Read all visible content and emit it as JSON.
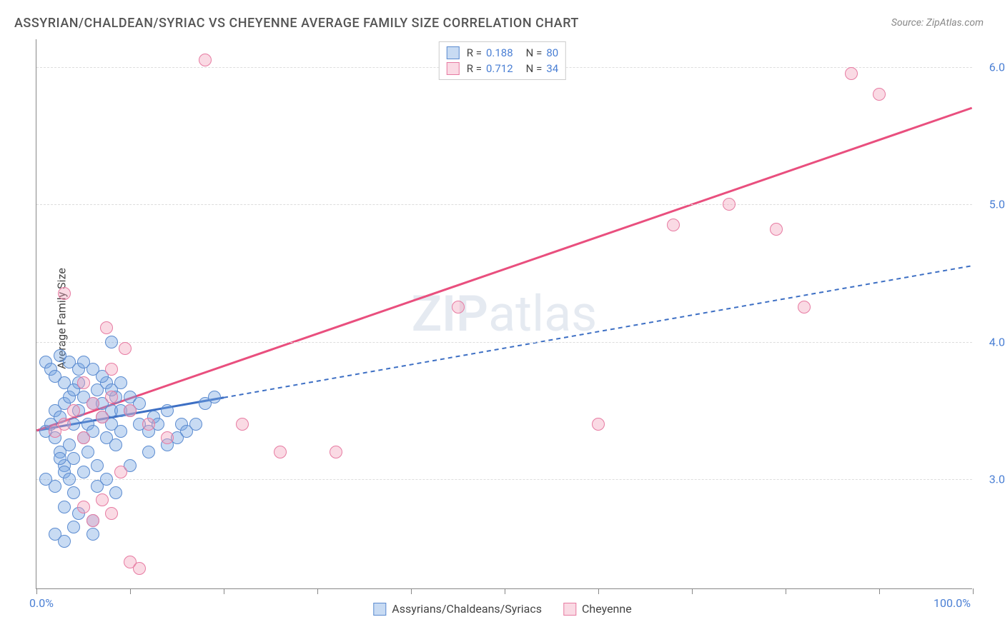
{
  "title": "ASSYRIAN/CHALDEAN/SYRIAC VS CHEYENNE AVERAGE FAMILY SIZE CORRELATION CHART",
  "source": "Source: ZipAtlas.com",
  "watermark_a": "ZIP",
  "watermark_b": "atlas",
  "y_axis_label": "Average Family Size",
  "chart": {
    "type": "scatter",
    "xlim": [
      0,
      100
    ],
    "ylim": [
      2.2,
      6.2
    ],
    "x_ticks": [
      0,
      10,
      20,
      30,
      40,
      50,
      60,
      70,
      80,
      90,
      100
    ],
    "x_tick_labels": {
      "0": "0.0%",
      "100": "100.0%"
    },
    "y_ticks": [
      3.0,
      4.0,
      5.0,
      6.0
    ],
    "y_tick_labels": {
      "3.0": "3.00",
      "4.0": "4.00",
      "5.0": "5.00",
      "6.0": "6.00"
    },
    "grid_color": "#dddddd",
    "axis_color": "#888888",
    "background_color": "#ffffff",
    "label_color": "#4a7fd4",
    "series": [
      {
        "name": "Assyrians/Chaldeans/Syriacs",
        "color_fill": "rgba(118,164,224,0.4)",
        "color_stroke": "#5b8bd0",
        "trend_color": "#3d6fc4",
        "trend_dash": "6 5",
        "trend_solid_frac": 0.2,
        "R": "0.188",
        "N": "80",
        "trend": {
          "x1": 0,
          "y1": 3.35,
          "x2": 100,
          "y2": 4.55
        },
        "points": [
          [
            1,
            3.35
          ],
          [
            1.5,
            3.4
          ],
          [
            2,
            3.3
          ],
          [
            2,
            3.5
          ],
          [
            2.5,
            3.2
          ],
          [
            2.5,
            3.45
          ],
          [
            3,
            3.1
          ],
          [
            3,
            3.55
          ],
          [
            3.5,
            3.6
          ],
          [
            3.5,
            3.25
          ],
          [
            4,
            3.4
          ],
          [
            4,
            3.15
          ],
          [
            4.5,
            3.5
          ],
          [
            4.5,
            3.7
          ],
          [
            5,
            3.3
          ],
          [
            5,
            3.6
          ],
          [
            5.5,
            3.4
          ],
          [
            5.5,
            3.2
          ],
          [
            6,
            3.55
          ],
          [
            6,
            3.35
          ],
          [
            6.5,
            3.65
          ],
          [
            6.5,
            3.1
          ],
          [
            7,
            3.45
          ],
          [
            7,
            3.55
          ],
          [
            7.5,
            3.3
          ],
          [
            7.5,
            3.7
          ],
          [
            8,
            3.4
          ],
          [
            8,
            3.5
          ],
          [
            8.5,
            3.6
          ],
          [
            8.5,
            3.25
          ],
          [
            9,
            3.35
          ],
          [
            9,
            3.5
          ],
          [
            1,
            3.85
          ],
          [
            1.5,
            3.8
          ],
          [
            2,
            3.75
          ],
          [
            2.5,
            3.9
          ],
          [
            3,
            3.7
          ],
          [
            3.5,
            3.85
          ],
          [
            4,
            3.65
          ],
          [
            4.5,
            3.8
          ],
          [
            1,
            3.0
          ],
          [
            2,
            2.95
          ],
          [
            3,
            3.05
          ],
          [
            4,
            2.9
          ],
          [
            2,
            2.6
          ],
          [
            3,
            2.55
          ],
          [
            4,
            2.65
          ],
          [
            6,
            2.6
          ],
          [
            8,
            4.0
          ],
          [
            10,
            3.5
          ],
          [
            11,
            3.4
          ],
          [
            12,
            3.35
          ],
          [
            12.5,
            3.45
          ],
          [
            13,
            3.4
          ],
          [
            14,
            3.5
          ],
          [
            15,
            3.3
          ],
          [
            15.5,
            3.4
          ],
          [
            16,
            3.35
          ],
          [
            17,
            3.4
          ],
          [
            18,
            3.55
          ],
          [
            19,
            3.6
          ],
          [
            5,
            3.85
          ],
          [
            6,
            3.8
          ],
          [
            7,
            3.75
          ],
          [
            8,
            3.65
          ],
          [
            9,
            3.7
          ],
          [
            10,
            3.6
          ],
          [
            11,
            3.55
          ],
          [
            3,
            2.8
          ],
          [
            4.5,
            2.75
          ],
          [
            6,
            2.7
          ],
          [
            2.5,
            3.15
          ],
          [
            3.5,
            3.0
          ],
          [
            5,
            3.05
          ],
          [
            6.5,
            2.95
          ],
          [
            7.5,
            3.0
          ],
          [
            8.5,
            2.9
          ],
          [
            10,
            3.1
          ],
          [
            12,
            3.2
          ],
          [
            14,
            3.25
          ]
        ]
      },
      {
        "name": "Cheyenne",
        "color_fill": "rgba(243,163,188,0.4)",
        "color_stroke": "#e77ba2",
        "trend_color": "#e94f7e",
        "trend_dash": "",
        "trend_solid_frac": 1.0,
        "R": "0.712",
        "N": "34",
        "trend": {
          "x1": 0,
          "y1": 3.35,
          "x2": 100,
          "y2": 5.7
        },
        "points": [
          [
            2,
            3.35
          ],
          [
            3,
            3.4
          ],
          [
            4,
            3.5
          ],
          [
            5,
            3.3
          ],
          [
            6,
            3.55
          ],
          [
            7,
            3.45
          ],
          [
            8,
            3.6
          ],
          [
            5,
            2.8
          ],
          [
            6,
            2.7
          ],
          [
            7,
            2.85
          ],
          [
            8,
            2.75
          ],
          [
            10,
            2.4
          ],
          [
            11,
            2.35
          ],
          [
            7.5,
            4.1
          ],
          [
            9.5,
            3.95
          ],
          [
            3,
            4.35
          ],
          [
            5,
            3.7
          ],
          [
            8,
            3.8
          ],
          [
            10,
            3.5
          ],
          [
            12,
            3.4
          ],
          [
            14,
            3.3
          ],
          [
            18,
            6.05
          ],
          [
            22,
            3.4
          ],
          [
            26,
            3.2
          ],
          [
            32,
            3.2
          ],
          [
            45,
            4.25
          ],
          [
            60,
            3.4
          ],
          [
            68,
            4.85
          ],
          [
            74,
            5.0
          ],
          [
            79,
            4.82
          ],
          [
            82,
            4.25
          ],
          [
            87,
            5.95
          ],
          [
            90,
            5.8
          ],
          [
            9,
            3.05
          ]
        ]
      }
    ]
  },
  "legend_bottom": [
    {
      "label": "Assyrians/Chaldeans/Syriacs",
      "series": 0
    },
    {
      "label": "Cheyenne",
      "series": 1
    }
  ]
}
